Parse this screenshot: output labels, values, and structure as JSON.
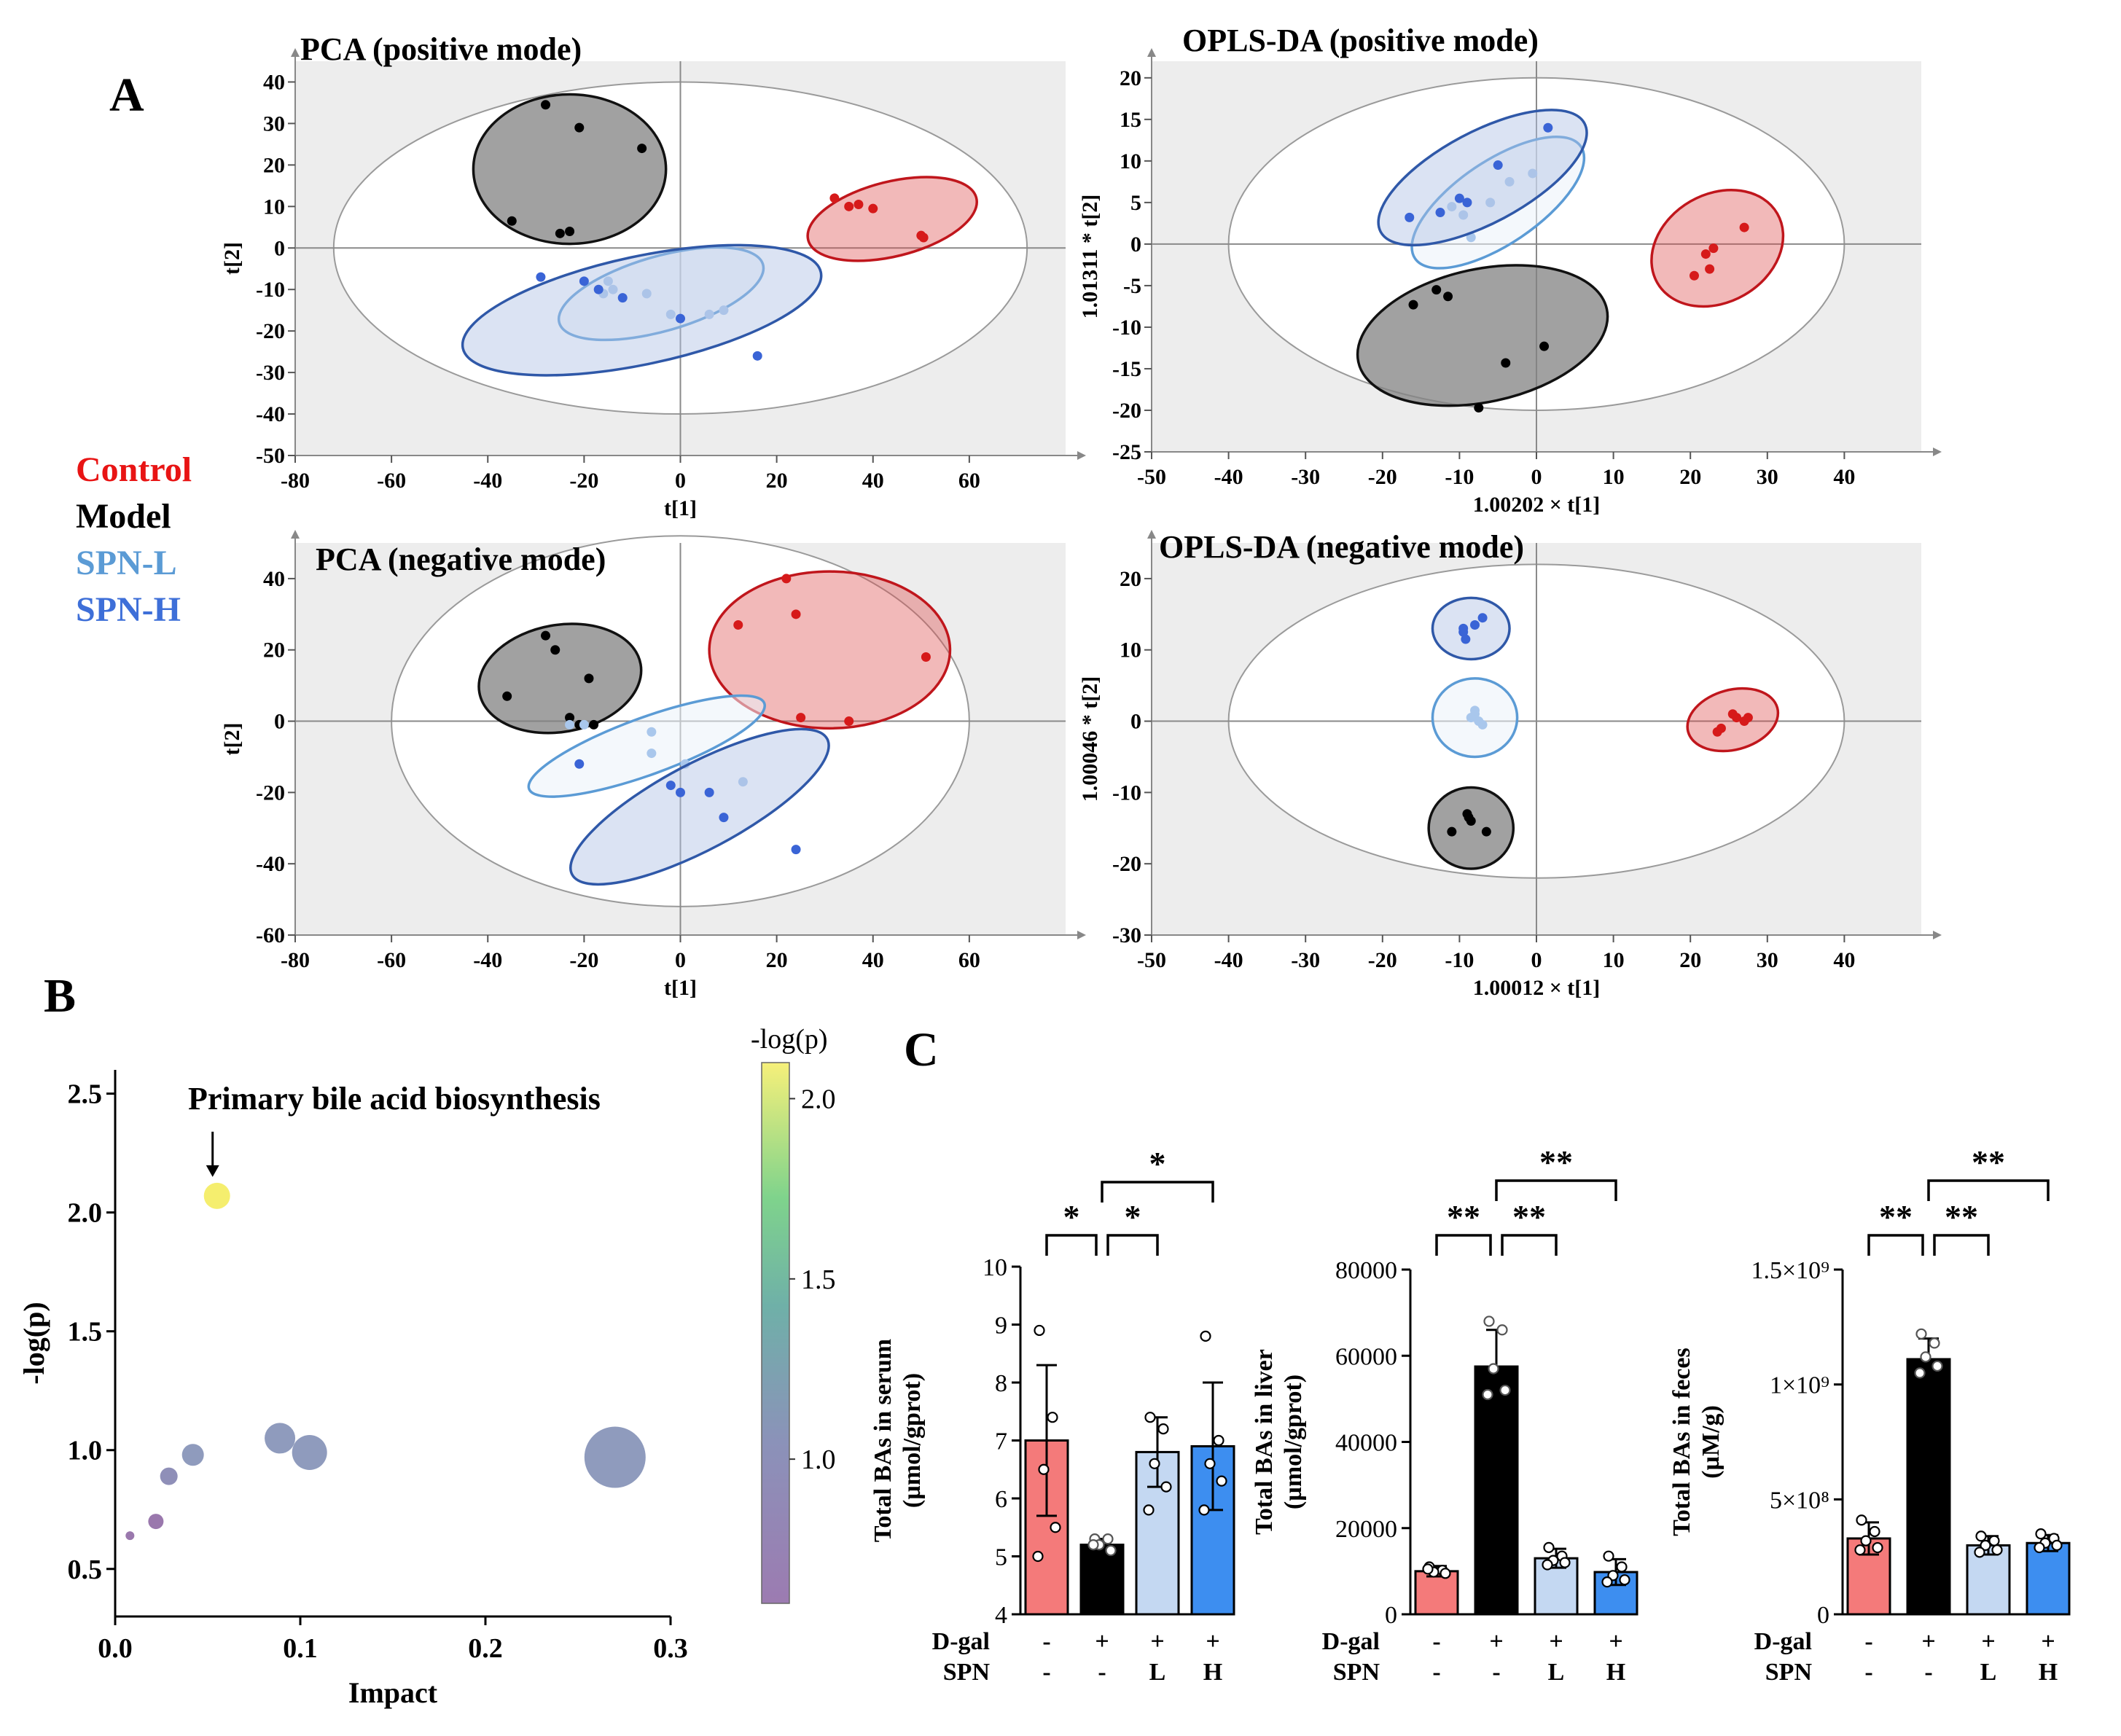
{
  "panel_labels": {
    "A": "A",
    "B": "B",
    "C": "C"
  },
  "legend": [
    {
      "label": "Control",
      "color": "#e81414"
    },
    {
      "label": "Model",
      "color": "#000000"
    },
    {
      "label": "SPN-L",
      "color": "#5b9bd5"
    },
    {
      "label": "SPN-H",
      "color": "#3e6fd8"
    }
  ],
  "chart_data": [
    {
      "id": "pca-pos",
      "type": "scatter",
      "title": "PCA (positive mode)",
      "xlabel": "t[1]",
      "ylabel": "t[2]",
      "xlim": [
        -80,
        80
      ],
      "ylim": [
        -50,
        45
      ],
      "xticks": [
        -80,
        -60,
        -40,
        -20,
        0,
        20,
        40,
        60
      ],
      "yticks": [
        40,
        30,
        20,
        10,
        0,
        -10,
        -20,
        -30,
        -40,
        -50
      ],
      "ellipse": {
        "cx": 0,
        "cy": 0,
        "rx": 72,
        "ry": 40
      },
      "series": [
        {
          "name": "Control",
          "points": [
            [
              32,
              12
            ],
            [
              35,
              10
            ],
            [
              37,
              10.5
            ],
            [
              40,
              9.5
            ],
            [
              50,
              3
            ],
            [
              50.5,
              2.5
            ]
          ],
          "ellipse": {
            "cx": 44,
            "cy": 7,
            "rx": 18,
            "ry": 9,
            "angle": -14
          }
        },
        {
          "name": "Model",
          "points": [
            [
              -28,
              34.5
            ],
            [
              -21,
              29
            ],
            [
              -8,
              24
            ],
            [
              -35,
              6.5
            ],
            [
              -25,
              3.5
            ],
            [
              -23,
              4
            ]
          ],
          "ellipse": {
            "cx": -23,
            "cy": 19,
            "rx": 20,
            "ry": 18,
            "angle": 0
          }
        },
        {
          "name": "SPN-L",
          "points": [
            [
              -15,
              -8
            ],
            [
              -14,
              -10
            ],
            [
              -16,
              -11
            ],
            [
              -7,
              -11
            ],
            [
              6,
              -16
            ],
            [
              9,
              -15
            ],
            [
              -2,
              -16
            ]
          ],
          "ellipse": {
            "cx": -4,
            "cy": -11,
            "rx": 22,
            "ry": 9,
            "angle": -16
          }
        },
        {
          "name": "SPN-H",
          "points": [
            [
              -29,
              -7
            ],
            [
              -20,
              -8
            ],
            [
              -17,
              -10
            ],
            [
              -12,
              -12
            ],
            [
              0,
              -17
            ],
            [
              16,
              -26
            ]
          ],
          "ellipse": {
            "cx": -8,
            "cy": -15,
            "rx": 38,
            "ry": 13,
            "angle": -12
          }
        }
      ]
    },
    {
      "id": "opls-pos",
      "type": "scatter",
      "title": "OPLS-DA (positive mode)",
      "xlabel": "1.00202 × t[1]",
      "ylabel": "1.01311 * t[2]",
      "xlim": [
        -50,
        50
      ],
      "ylim": [
        -25,
        22
      ],
      "xticks": [
        -50,
        -40,
        -30,
        -20,
        -10,
        0,
        10,
        20,
        30,
        40
      ],
      "yticks": [
        20,
        15,
        10,
        5,
        0,
        -5,
        -10,
        -15,
        -20,
        -25
      ],
      "ellipse": {
        "cx": 0,
        "cy": 0,
        "rx": 40,
        "ry": 20
      },
      "series": [
        {
          "name": "Control",
          "points": [
            [
              27,
              2
            ],
            [
              23,
              -0.5
            ],
            [
              22,
              -1.2
            ],
            [
              22.5,
              -3
            ],
            [
              20.5,
              -3.8
            ]
          ],
          "ellipse": {
            "cx": 23.5,
            "cy": -0.5,
            "rx": 9,
            "ry": 6.5,
            "angle": -30
          }
        },
        {
          "name": "Model",
          "points": [
            [
              -13,
              -5.5
            ],
            [
              -11.5,
              -6.3
            ],
            [
              -16,
              -7.3
            ],
            [
              1,
              -12.3
            ],
            [
              -4,
              -14.3
            ],
            [
              -7.5,
              -19.7
            ]
          ],
          "ellipse": {
            "cx": -7,
            "cy": -11,
            "rx": 16.5,
            "ry": 8,
            "angle": -12
          }
        },
        {
          "name": "SPN-L",
          "points": [
            [
              -11,
              4.5
            ],
            [
              -9.5,
              3.5
            ],
            [
              -6,
              5
            ],
            [
              -3.5,
              7.5
            ],
            [
              -0.5,
              8.5
            ],
            [
              -8.5,
              0.8
            ]
          ],
          "ellipse": {
            "cx": -5,
            "cy": 5,
            "rx": 13,
            "ry": 5,
            "angle": -34
          }
        },
        {
          "name": "SPN-H",
          "points": [
            [
              1.5,
              14
            ],
            [
              -5,
              9.5
            ],
            [
              -10,
              5.5
            ],
            [
              -12.5,
              3.8
            ],
            [
              -16.5,
              3.2
            ],
            [
              -9,
              5
            ]
          ],
          "ellipse": {
            "cx": -7,
            "cy": 8,
            "rx": 15,
            "ry": 5.5,
            "angle": -28
          }
        }
      ]
    },
    {
      "id": "pca-neg",
      "type": "scatter",
      "title": "PCA (negative mode)",
      "xlabel": "t[1]",
      "ylabel": "t[2]",
      "xlim": [
        -80,
        80
      ],
      "ylim": [
        -60,
        50
      ],
      "xticks": [
        -80,
        -60,
        -40,
        -20,
        0,
        20,
        40,
        60
      ],
      "yticks": [
        40,
        20,
        0,
        -20,
        -40,
        -60
      ],
      "ellipse": {
        "cx": 0,
        "cy": 0,
        "rx": 60,
        "ry": 52
      },
      "series": [
        {
          "name": "Control",
          "points": [
            [
              22,
              40
            ],
            [
              24,
              30
            ],
            [
              12,
              27
            ],
            [
              51,
              18
            ],
            [
              25,
              1
            ],
            [
              35,
              0
            ]
          ],
          "ellipse": {
            "cx": 31,
            "cy": 20,
            "rx": 25,
            "ry": 22,
            "angle": 0
          }
        },
        {
          "name": "Model",
          "points": [
            [
              -28,
              24
            ],
            [
              -26,
              20
            ],
            [
              -19,
              12
            ],
            [
              -36,
              7
            ],
            [
              -23,
              1
            ],
            [
              -21,
              -1
            ],
            [
              -18,
              -1
            ]
          ],
          "ellipse": {
            "cx": -25,
            "cy": 12,
            "rx": 17,
            "ry": 15,
            "angle": -10
          }
        },
        {
          "name": "SPN-L",
          "points": [
            [
              -6,
              -3
            ],
            [
              -6,
              -9
            ],
            [
              1,
              -12
            ],
            [
              -20,
              -1
            ],
            [
              13,
              -17
            ],
            [
              -23,
              -1
            ]
          ],
          "ellipse": {
            "cx": -7,
            "cy": -7,
            "rx": 26,
            "ry": 8,
            "angle": -20
          }
        },
        {
          "name": "SPN-H",
          "points": [
            [
              -21,
              -12
            ],
            [
              -2,
              -18
            ],
            [
              0,
              -20
            ],
            [
              6,
              -20
            ],
            [
              9,
              -27
            ],
            [
              24,
              -36
            ]
          ],
          "ellipse": {
            "cx": 4,
            "cy": -24,
            "rx": 30,
            "ry": 12,
            "angle": -28
          }
        }
      ]
    },
    {
      "id": "opls-neg",
      "type": "scatter",
      "title": "OPLS-DA (negative mode)",
      "xlabel": "1.00012 × t[1]",
      "ylabel": "1.00046 * t[2]",
      "xlim": [
        -50,
        50
      ],
      "ylim": [
        -30,
        25
      ],
      "xticks": [
        -50,
        -40,
        -30,
        -20,
        -10,
        0,
        10,
        20,
        30,
        40
      ],
      "yticks": [
        20,
        10,
        0,
        -10,
        -20,
        -30
      ],
      "ellipse": {
        "cx": 0,
        "cy": 0,
        "rx": 40,
        "ry": 22
      },
      "series": [
        {
          "name": "Control",
          "points": [
            [
              26,
              0.5
            ],
            [
              27,
              0
            ],
            [
              25.5,
              1
            ],
            [
              24,
              -1
            ],
            [
              23.5,
              -1.5
            ],
            [
              27.5,
              0.5
            ]
          ],
          "ellipse": {
            "cx": 25.5,
            "cy": 0.2,
            "rx": 6,
            "ry": 4.2,
            "angle": -15
          }
        },
        {
          "name": "Model",
          "points": [
            [
              -9,
              -13
            ],
            [
              -8.5,
              -14
            ],
            [
              -8.8,
              -13.5
            ],
            [
              -11,
              -15.5
            ],
            [
              -6.5,
              -15.5
            ]
          ],
          "ellipse": {
            "cx": -8.5,
            "cy": -15,
            "rx": 5.5,
            "ry": 5.7,
            "angle": 0
          }
        },
        {
          "name": "SPN-L",
          "points": [
            [
              -8,
              1
            ],
            [
              -7.5,
              0
            ],
            [
              -8.5,
              0.5
            ],
            [
              -7,
              -0.5
            ],
            [
              -8,
              1.5
            ]
          ],
          "ellipse": {
            "cx": -8,
            "cy": 0.5,
            "rx": 5.5,
            "ry": 5.5,
            "angle": 0
          }
        },
        {
          "name": "SPN-H",
          "points": [
            [
              -7,
              14.5
            ],
            [
              -8,
              13.5
            ],
            [
              -9.5,
              12.5
            ],
            [
              -9.2,
              11.5
            ],
            [
              -9.5,
              13
            ]
          ],
          "ellipse": {
            "cx": -8.5,
            "cy": 13,
            "rx": 5,
            "ry": 4.3,
            "angle": 0
          }
        }
      ]
    },
    {
      "id": "pathway",
      "type": "scatter",
      "title": "",
      "xlabel": "Impact",
      "ylabel": "-log(p)",
      "xlim": [
        0,
        0.3
      ],
      "ylim": [
        0.3,
        2.6
      ],
      "xticks": [
        0.0,
        0.1,
        0.2,
        0.3
      ],
      "xtick_labels": [
        "0.0",
        "0.1",
        "0.2",
        "0.3"
      ],
      "yticks": [
        0.5,
        1.0,
        1.5,
        2.0,
        2.5
      ],
      "ytick_labels": [
        "0.5",
        "1.0",
        "1.5",
        "2.0",
        "2.5"
      ],
      "annotation": "Primary bile acid biosynthesis",
      "colorbar": {
        "label": "-log(p)",
        "ticks": [
          "2.0",
          "1.5",
          "1.0"
        ],
        "tick_values": [
          2.0,
          1.5,
          1.0
        ],
        "range": [
          0.6,
          2.1
        ]
      },
      "points": [
        {
          "x": 0.055,
          "y": 2.07,
          "size": 6,
          "color": "#f5ee6e"
        },
        {
          "x": 0.089,
          "y": 1.05,
          "size": 7,
          "color": "#8f9bbd"
        },
        {
          "x": 0.105,
          "y": 0.99,
          "size": 8,
          "color": "#8f9bbd"
        },
        {
          "x": 0.27,
          "y": 0.97,
          "size": 14,
          "color": "#8f9bbd"
        },
        {
          "x": 0.042,
          "y": 0.98,
          "size": 5,
          "color": "#8f9bbd"
        },
        {
          "x": 0.029,
          "y": 0.89,
          "size": 4,
          "color": "#8f8fb8"
        },
        {
          "x": 0.022,
          "y": 0.7,
          "size": 3.5,
          "color": "#9a78ad"
        },
        {
          "x": 0.008,
          "y": 0.64,
          "size": 2,
          "color": "#9a78ad"
        }
      ]
    },
    {
      "id": "serum",
      "type": "bar",
      "ylabel": "Total BAs in serum\n(µmol/gprot)",
      "categories": [
        "Control",
        "Model",
        "SPN-L",
        "SPN-H"
      ],
      "values": [
        7.0,
        5.2,
        6.8,
        6.9
      ],
      "errors": [
        1.3,
        0.1,
        0.6,
        1.1
      ],
      "ylim": [
        4,
        10
      ],
      "yticks": [
        4,
        5,
        6,
        7,
        8,
        9,
        10
      ],
      "ytick_labels": [
        "4",
        "5",
        "6",
        "7",
        "8",
        "9",
        "10"
      ],
      "points": [
        [
          8.9,
          7.4,
          6.5,
          5.5,
          5.0
        ],
        [
          5.3,
          5.3,
          5.2,
          5.1,
          5.2
        ],
        [
          7.4,
          7.2,
          6.6,
          6.2,
          5.8
        ],
        [
          8.8,
          7.0,
          6.6,
          6.3,
          5.8
        ]
      ],
      "significance": [
        {
          "from": 0,
          "to": 1,
          "label": "*",
          "level": 1
        },
        {
          "from": 1,
          "to": 2,
          "label": "*",
          "level": 1
        },
        {
          "from": 1,
          "to": 3,
          "label": "*",
          "level": 2
        }
      ],
      "row_labels": [
        "D-gal",
        "SPN"
      ],
      "dgal": [
        "-",
        "+",
        "+",
        "+"
      ],
      "spn": [
        "-",
        "-",
        "L",
        "H"
      ]
    },
    {
      "id": "liver",
      "type": "bar",
      "ylabel": "Total BAs in liver\n(µmol/gprot)",
      "categories": [
        "Control",
        "Model",
        "SPN-L",
        "SPN-H"
      ],
      "values": [
        10000,
        57500,
        13000,
        9800
      ],
      "errors": [
        1200,
        8500,
        2200,
        3000
      ],
      "ylim": [
        0,
        80000
      ],
      "yticks": [
        0,
        20000,
        40000,
        60000,
        80000
      ],
      "ytick_labels": [
        "0",
        "20000",
        "40000",
        "60000",
        "80000"
      ],
      "points": [
        [
          11000,
          10200,
          9800,
          9500,
          10500
        ],
        [
          68000,
          66000,
          57000,
          52000,
          51000
        ],
        [
          15500,
          13500,
          12500,
          12000,
          11500
        ],
        [
          13500,
          11000,
          9000,
          8000,
          7500
        ]
      ],
      "significance": [
        {
          "from": 0,
          "to": 1,
          "label": "**",
          "level": 1
        },
        {
          "from": 1,
          "to": 2,
          "label": "**",
          "level": 1
        },
        {
          "from": 1,
          "to": 3,
          "label": "**",
          "level": 2
        }
      ],
      "row_labels": [
        "D-gal",
        "SPN"
      ],
      "dgal": [
        "-",
        "+",
        "+",
        "+"
      ],
      "spn": [
        "-",
        "-",
        "L",
        "H"
      ]
    },
    {
      "id": "feces",
      "type": "bar",
      "ylabel": "Total BAs in feces\n(µM/g)",
      "categories": [
        "Control",
        "Model",
        "SPN-L",
        "SPN-H"
      ],
      "values": [
        330000000,
        1110000000,
        300000000,
        310000000
      ],
      "errors": [
        70000000,
        90000000,
        40000000,
        35000000
      ],
      "ylim": [
        0,
        1500000000
      ],
      "yticks": [
        0,
        500000000,
        1000000000,
        1500000000
      ],
      "ytick_labels": [
        "0",
        "5×10⁸",
        "1×10⁹",
        "1.5×10⁹"
      ],
      "points": [
        [
          410000000,
          360000000,
          320000000,
          290000000,
          280000000
        ],
        [
          1220000000,
          1180000000,
          1120000000,
          1080000000,
          1050000000
        ],
        [
          340000000,
          320000000,
          300000000,
          280000000,
          270000000
        ],
        [
          350000000,
          330000000,
          310000000,
          300000000,
          290000000
        ]
      ],
      "significance": [
        {
          "from": 0,
          "to": 1,
          "label": "**",
          "level": 1
        },
        {
          "from": 1,
          "to": 2,
          "label": "**",
          "level": 1
        },
        {
          "from": 1,
          "to": 3,
          "label": "**",
          "level": 2
        }
      ],
      "row_labels": [
        "D-gal",
        "SPN"
      ],
      "dgal": [
        "-",
        "+",
        "+",
        "+"
      ],
      "spn": [
        "-",
        "-",
        "L",
        "H"
      ]
    }
  ]
}
